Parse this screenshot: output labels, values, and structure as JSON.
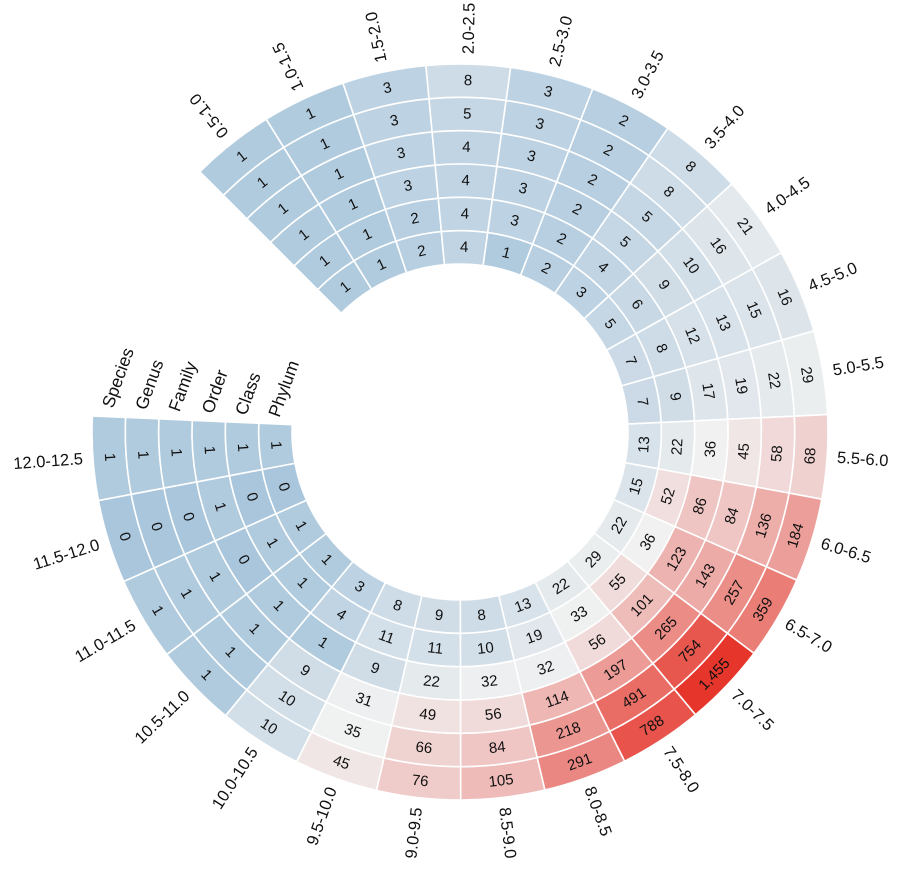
{
  "chart_data": {
    "type": "heatmap",
    "layout": "circular",
    "title": "",
    "rings": [
      "Species",
      "Genus",
      "Family",
      "Order",
      "Class",
      "Phylum"
    ],
    "categories": [
      "0.5-1.0",
      "1.0-1.5",
      "1.5-2.0",
      "2.0-2.5",
      "2.5-3.0",
      "3.0-3.5",
      "3.5-4.0",
      "4.0-4.5",
      "4.5-5.0",
      "5.0-5.5",
      "5.5-6.0",
      "6.0-6.5",
      "6.5-7.0",
      "7.0-7.5",
      "7.5-8.0",
      "8.0-8.5",
      "8.5-9.0",
      "9.0-9.5",
      "9.5-10.0",
      "10.0-10.5",
      "10.5-11.0",
      "11.0-11.5",
      "11.5-12.0",
      "12.0-12.5"
    ],
    "series": [
      {
        "name": "Species",
        "values": [
          1,
          1,
          3,
          8,
          3,
          2,
          8,
          21,
          16,
          29,
          68,
          184,
          359,
          1455,
          788,
          291,
          105,
          76,
          45,
          10,
          1,
          1,
          0,
          1
        ]
      },
      {
        "name": "Genus",
        "values": [
          1,
          1,
          3,
          5,
          3,
          2,
          8,
          16,
          15,
          22,
          58,
          136,
          257,
          754,
          491,
          218,
          84,
          66,
          35,
          10,
          1,
          1,
          0,
          1
        ]
      },
      {
        "name": "Family",
        "values": [
          1,
          1,
          3,
          4,
          3,
          2,
          5,
          10,
          13,
          19,
          45,
          84,
          143,
          265,
          197,
          114,
          56,
          49,
          31,
          9,
          1,
          1,
          0,
          1
        ]
      },
      {
        "name": "Order",
        "values": [
          1,
          1,
          3,
          4,
          3,
          2,
          5,
          9,
          12,
          17,
          36,
          86,
          123,
          101,
          56,
          32,
          32,
          22,
          9,
          1,
          1,
          0,
          1,
          1
        ]
      },
      {
        "name": "Class",
        "values": [
          1,
          1,
          2,
          4,
          3,
          2,
          4,
          6,
          8,
          9,
          22,
          52,
          36,
          55,
          33,
          19,
          10,
          11,
          11,
          4,
          1,
          1,
          0,
          1
        ]
      },
      {
        "name": "Phylum",
        "values": [
          1,
          1,
          2,
          4,
          1,
          2,
          3,
          5,
          7,
          7,
          13,
          15,
          22,
          29,
          22,
          13,
          8,
          9,
          8,
          3,
          1,
          1,
          0,
          1
        ]
      }
    ],
    "color_scale": {
      "low": "#a9c6dc",
      "mid": "#f1f1f1",
      "high": "#e6352b",
      "type": "log"
    },
    "legend": "none",
    "grid": false
  }
}
